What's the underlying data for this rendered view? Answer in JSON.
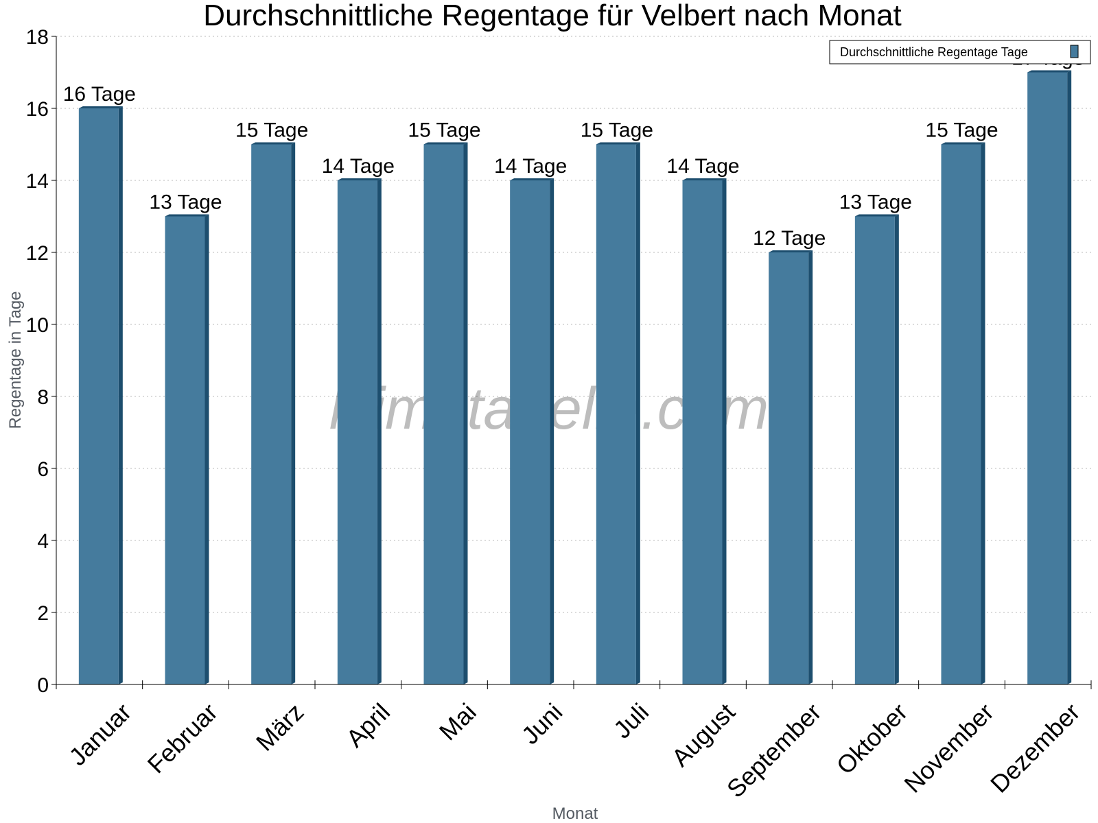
{
  "chart_data": {
    "type": "bar",
    "title": "Durchschnittliche Regentage für Velbert nach Monat",
    "xlabel": "Monat",
    "ylabel": "Regentage in Tage",
    "categories": [
      "Januar",
      "Februar",
      "März",
      "April",
      "Mai",
      "Juni",
      "Juli",
      "August",
      "September",
      "Oktober",
      "November",
      "Dezember"
    ],
    "series": [
      {
        "name": "Durchschnittliche Regentage Tage",
        "values": [
          16,
          13,
          15,
          14,
          15,
          14,
          15,
          14,
          12,
          13,
          15,
          17
        ],
        "data_labels": [
          "16 Tage",
          "13 Tage",
          "15 Tage",
          "14 Tage",
          "15 Tage",
          "14 Tage",
          "15 Tage",
          "14 Tage",
          "12 Tage",
          "13 Tage",
          "15 Tage",
          "17 Tage"
        ]
      }
    ],
    "ylim": [
      0,
      18
    ],
    "yticks": [
      0,
      2,
      4,
      6,
      8,
      10,
      12,
      14,
      16,
      18
    ],
    "grid": true,
    "legend_position": "top-right",
    "colors": {
      "bar": "#457b9d",
      "bar_side": "#1d4e6e",
      "bar_top": "#1d4e6e"
    }
  },
  "watermark": "klimatabelle.com"
}
